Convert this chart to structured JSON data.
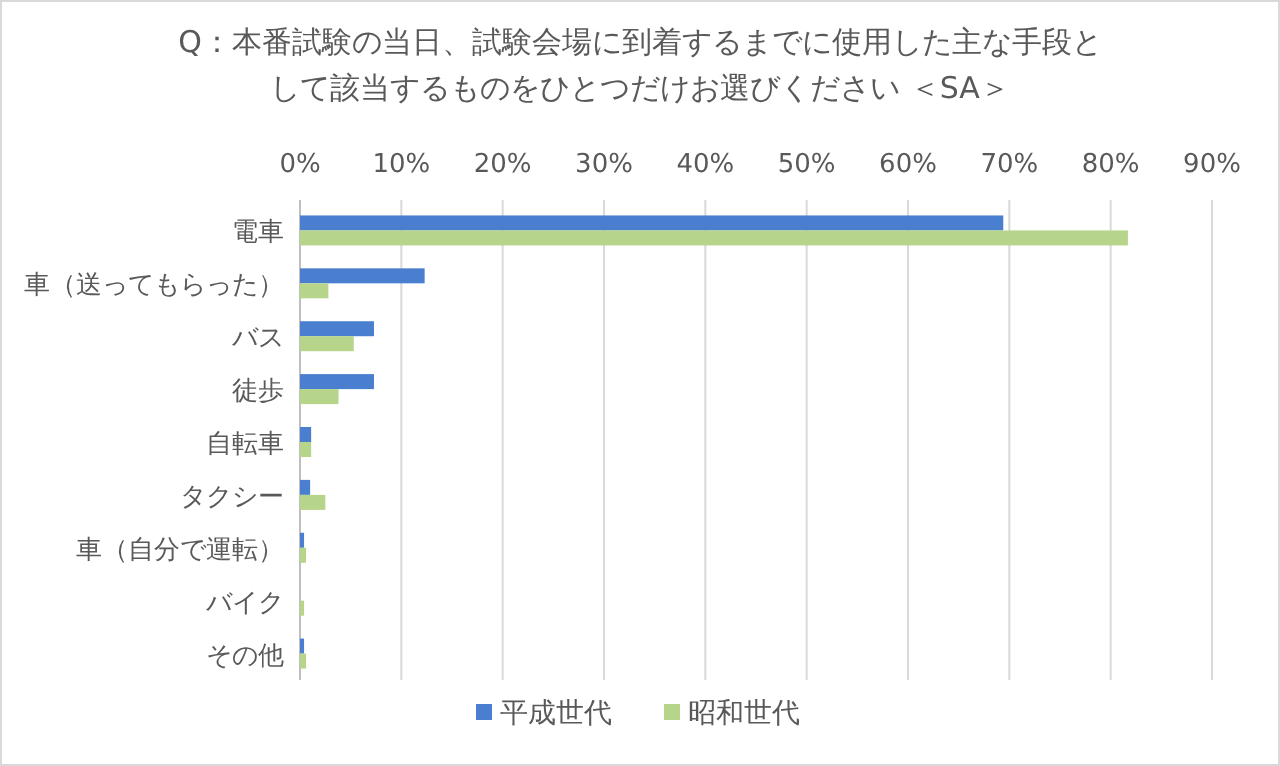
{
  "chart_data": {
    "type": "bar",
    "orientation": "horizontal",
    "title": "Q：本番試験の当日、試験会場に到着するまでに使用した主な手段として該当するものをひとつだけお選びください ＜SA＞",
    "categories": [
      "電車",
      "車（送ってもらった）",
      "バス",
      "徒歩",
      "自転車",
      "タクシー",
      "車（自分で運転）",
      "バイク",
      "その他"
    ],
    "series": [
      {
        "name": "平成世代",
        "color": "#4a7fd0",
        "values": [
          69.4,
          12.3,
          7.3,
          7.3,
          1.1,
          1.0,
          0.4,
          0,
          0.4
        ]
      },
      {
        "name": "昭和世代",
        "color": "#b6d48a",
        "values": [
          81.7,
          2.8,
          5.3,
          3.8,
          1.1,
          2.5,
          0.6,
          0.4,
          0.6
        ]
      }
    ],
    "xlim": [
      0,
      90
    ],
    "xticks": [
      {
        "value": 0,
        "label": "0%"
      },
      {
        "value": 10,
        "label": "10%"
      },
      {
        "value": 20,
        "label": "20%"
      },
      {
        "value": 30,
        "label": "30%"
      },
      {
        "value": 40,
        "label": "40%"
      },
      {
        "value": 50,
        "label": "50%"
      },
      {
        "value": 60,
        "label": "60%"
      },
      {
        "value": 70,
        "label": "70%"
      },
      {
        "value": 80,
        "label": "80%"
      },
      {
        "value": 90,
        "label": "90%"
      }
    ],
    "grid": "x",
    "legend": "bottom"
  }
}
